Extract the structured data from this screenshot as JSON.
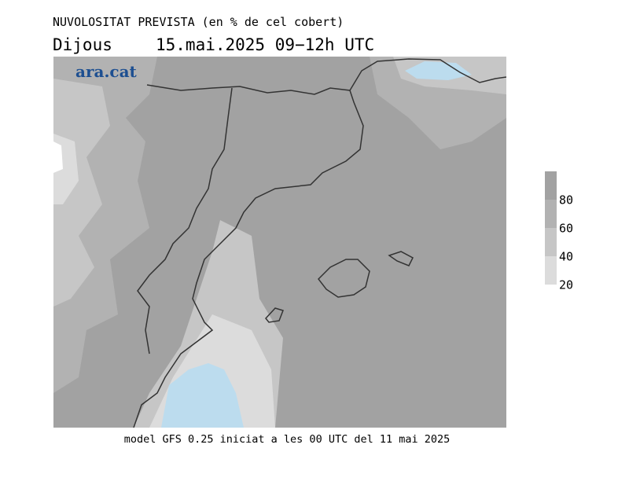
{
  "header": {
    "title": "NUVOLOSITAT PREVISTA (en % de cel cobert)",
    "day": "Dijous",
    "date": "15.mai.2025 09−12h UTC"
  },
  "map": {
    "logo": "ara.cat"
  },
  "legend": {
    "lim": [
      20,
      100
    ],
    "ticks": [
      20,
      40,
      60,
      80
    ],
    "colors": [
      "#dcdcdc",
      "#c6c6c6",
      "#b2b2b2",
      "#a2a2a2"
    ]
  },
  "footer": "model GFS 0.25 iniciat a les 00 UTC del 11 mai 2025"
}
